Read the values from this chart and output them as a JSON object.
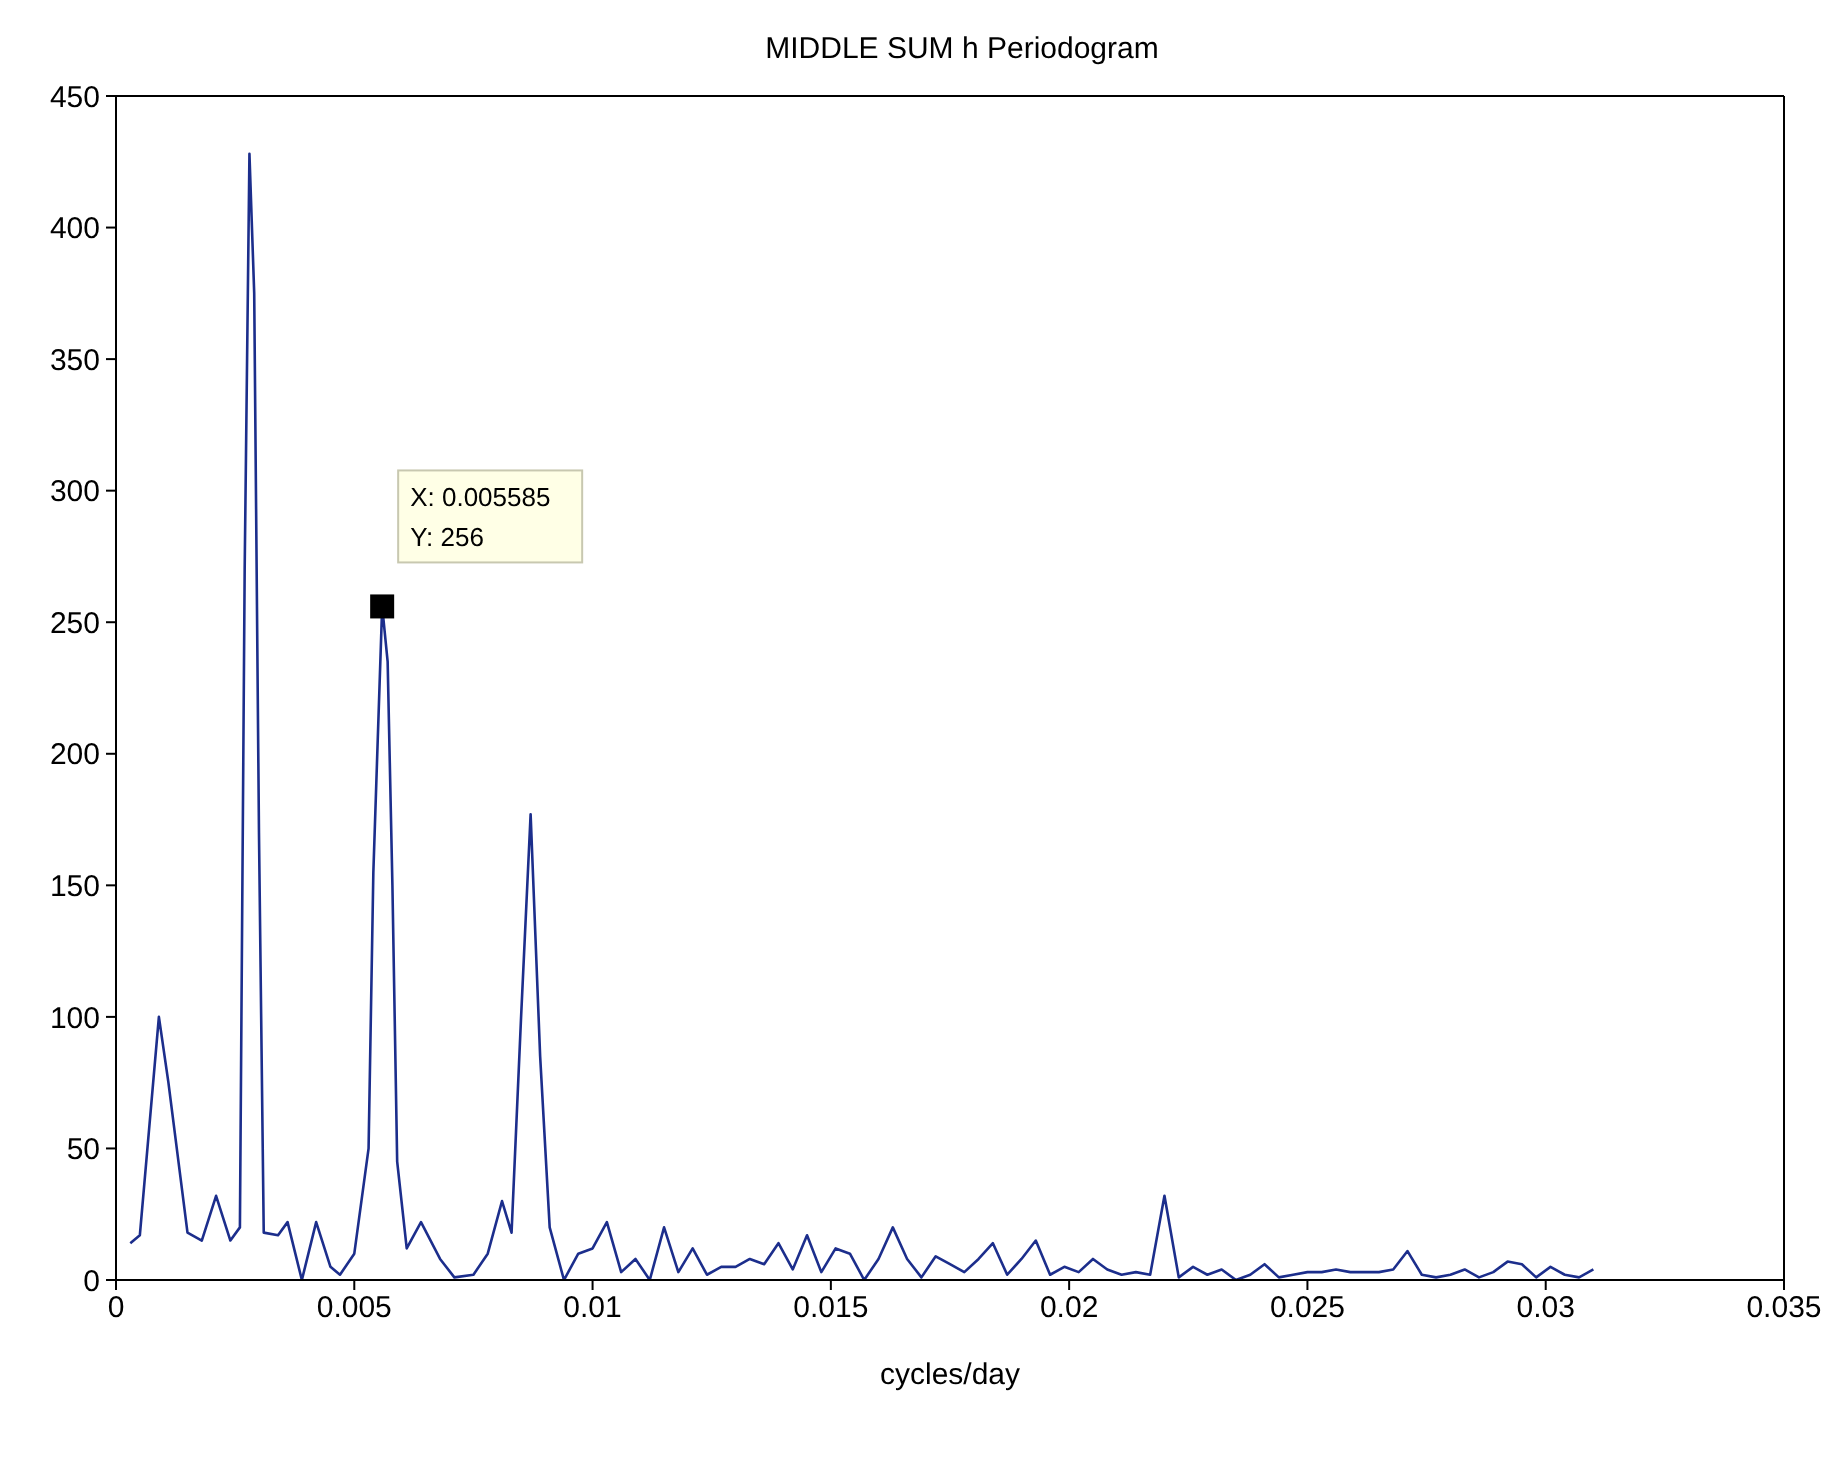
{
  "chart_data": {
    "type": "line",
    "title": "MIDDLE SUM h  Periodogram",
    "xlabel": "cycles/day",
    "xlim": [
      0,
      0.035
    ],
    "xticks": [
      0,
      0.005,
      0.01,
      0.015,
      0.02,
      0.025,
      0.03,
      0.035
    ],
    "ylim": [
      0,
      450
    ],
    "yticks": [
      0,
      50,
      100,
      150,
      200,
      250,
      300,
      350,
      400,
      450
    ],
    "marker": "none",
    "line_style": "solid",
    "annotations": [
      {
        "text": "X: 0.005585\nY: 256",
        "x": 0.005585,
        "y": 256
      }
    ],
    "series": [
      {
        "color": "#1c2e8c",
        "x": [
          0.0003,
          0.0005,
          0.0009,
          0.0011,
          0.0015,
          0.0018,
          0.0021,
          0.0024,
          0.0026,
          0.0027,
          0.0028,
          0.0029,
          0.003,
          0.0031,
          0.0034,
          0.0036,
          0.0039,
          0.0042,
          0.0045,
          0.0047,
          0.005,
          0.0053,
          0.0054,
          0.005585,
          0.0057,
          0.0058,
          0.0059,
          0.0061,
          0.0064,
          0.0068,
          0.0071,
          0.0075,
          0.0078,
          0.0081,
          0.0083,
          0.0085,
          0.0087,
          0.0089,
          0.0091,
          0.0094,
          0.0097,
          0.01,
          0.0103,
          0.0106,
          0.0109,
          0.0112,
          0.0115,
          0.0118,
          0.0121,
          0.0124,
          0.0127,
          0.013,
          0.0133,
          0.0136,
          0.0139,
          0.0142,
          0.0145,
          0.0148,
          0.0151,
          0.0154,
          0.0157,
          0.016,
          0.0163,
          0.0166,
          0.0169,
          0.0172,
          0.0175,
          0.0178,
          0.0181,
          0.0184,
          0.0187,
          0.019,
          0.0193,
          0.0196,
          0.0199,
          0.0202,
          0.0205,
          0.0208,
          0.0211,
          0.0214,
          0.0217,
          0.022,
          0.0223,
          0.0226,
          0.0229,
          0.0232,
          0.0235,
          0.0238,
          0.0241,
          0.0244,
          0.0247,
          0.025,
          0.0253,
          0.0256,
          0.0259,
          0.0262,
          0.0265,
          0.0268,
          0.0271,
          0.0274,
          0.0277,
          0.028,
          0.0283,
          0.0286,
          0.0289,
          0.0292,
          0.0295,
          0.0298,
          0.0301,
          0.0304,
          0.0307,
          0.031
        ],
        "values": [
          14,
          17,
          100,
          75,
          18,
          15,
          32,
          15,
          20,
          270,
          428,
          375,
          170,
          18,
          17,
          22,
          0,
          22,
          5,
          2,
          10,
          50,
          155,
          256,
          235,
          150,
          45,
          12,
          22,
          8,
          1,
          2,
          10,
          30,
          18,
          100,
          177,
          85,
          20,
          0,
          10,
          12,
          22,
          3,
          8,
          0,
          20,
          3,
          12,
          2,
          5,
          5,
          8,
          6,
          14,
          4,
          17,
          3,
          12,
          10,
          0,
          8,
          20,
          8,
          1,
          9,
          6,
          3,
          8,
          14,
          2,
          8,
          15,
          2,
          5,
          3,
          8,
          4,
          2,
          3,
          2,
          32,
          1,
          5,
          2,
          4,
          0,
          2,
          6,
          1,
          2,
          3,
          3,
          4,
          3,
          3,
          3,
          4,
          11,
          2,
          1,
          2,
          4,
          1,
          3,
          7,
          6,
          1,
          5,
          2,
          1,
          4
        ]
      }
    ]
  }
}
